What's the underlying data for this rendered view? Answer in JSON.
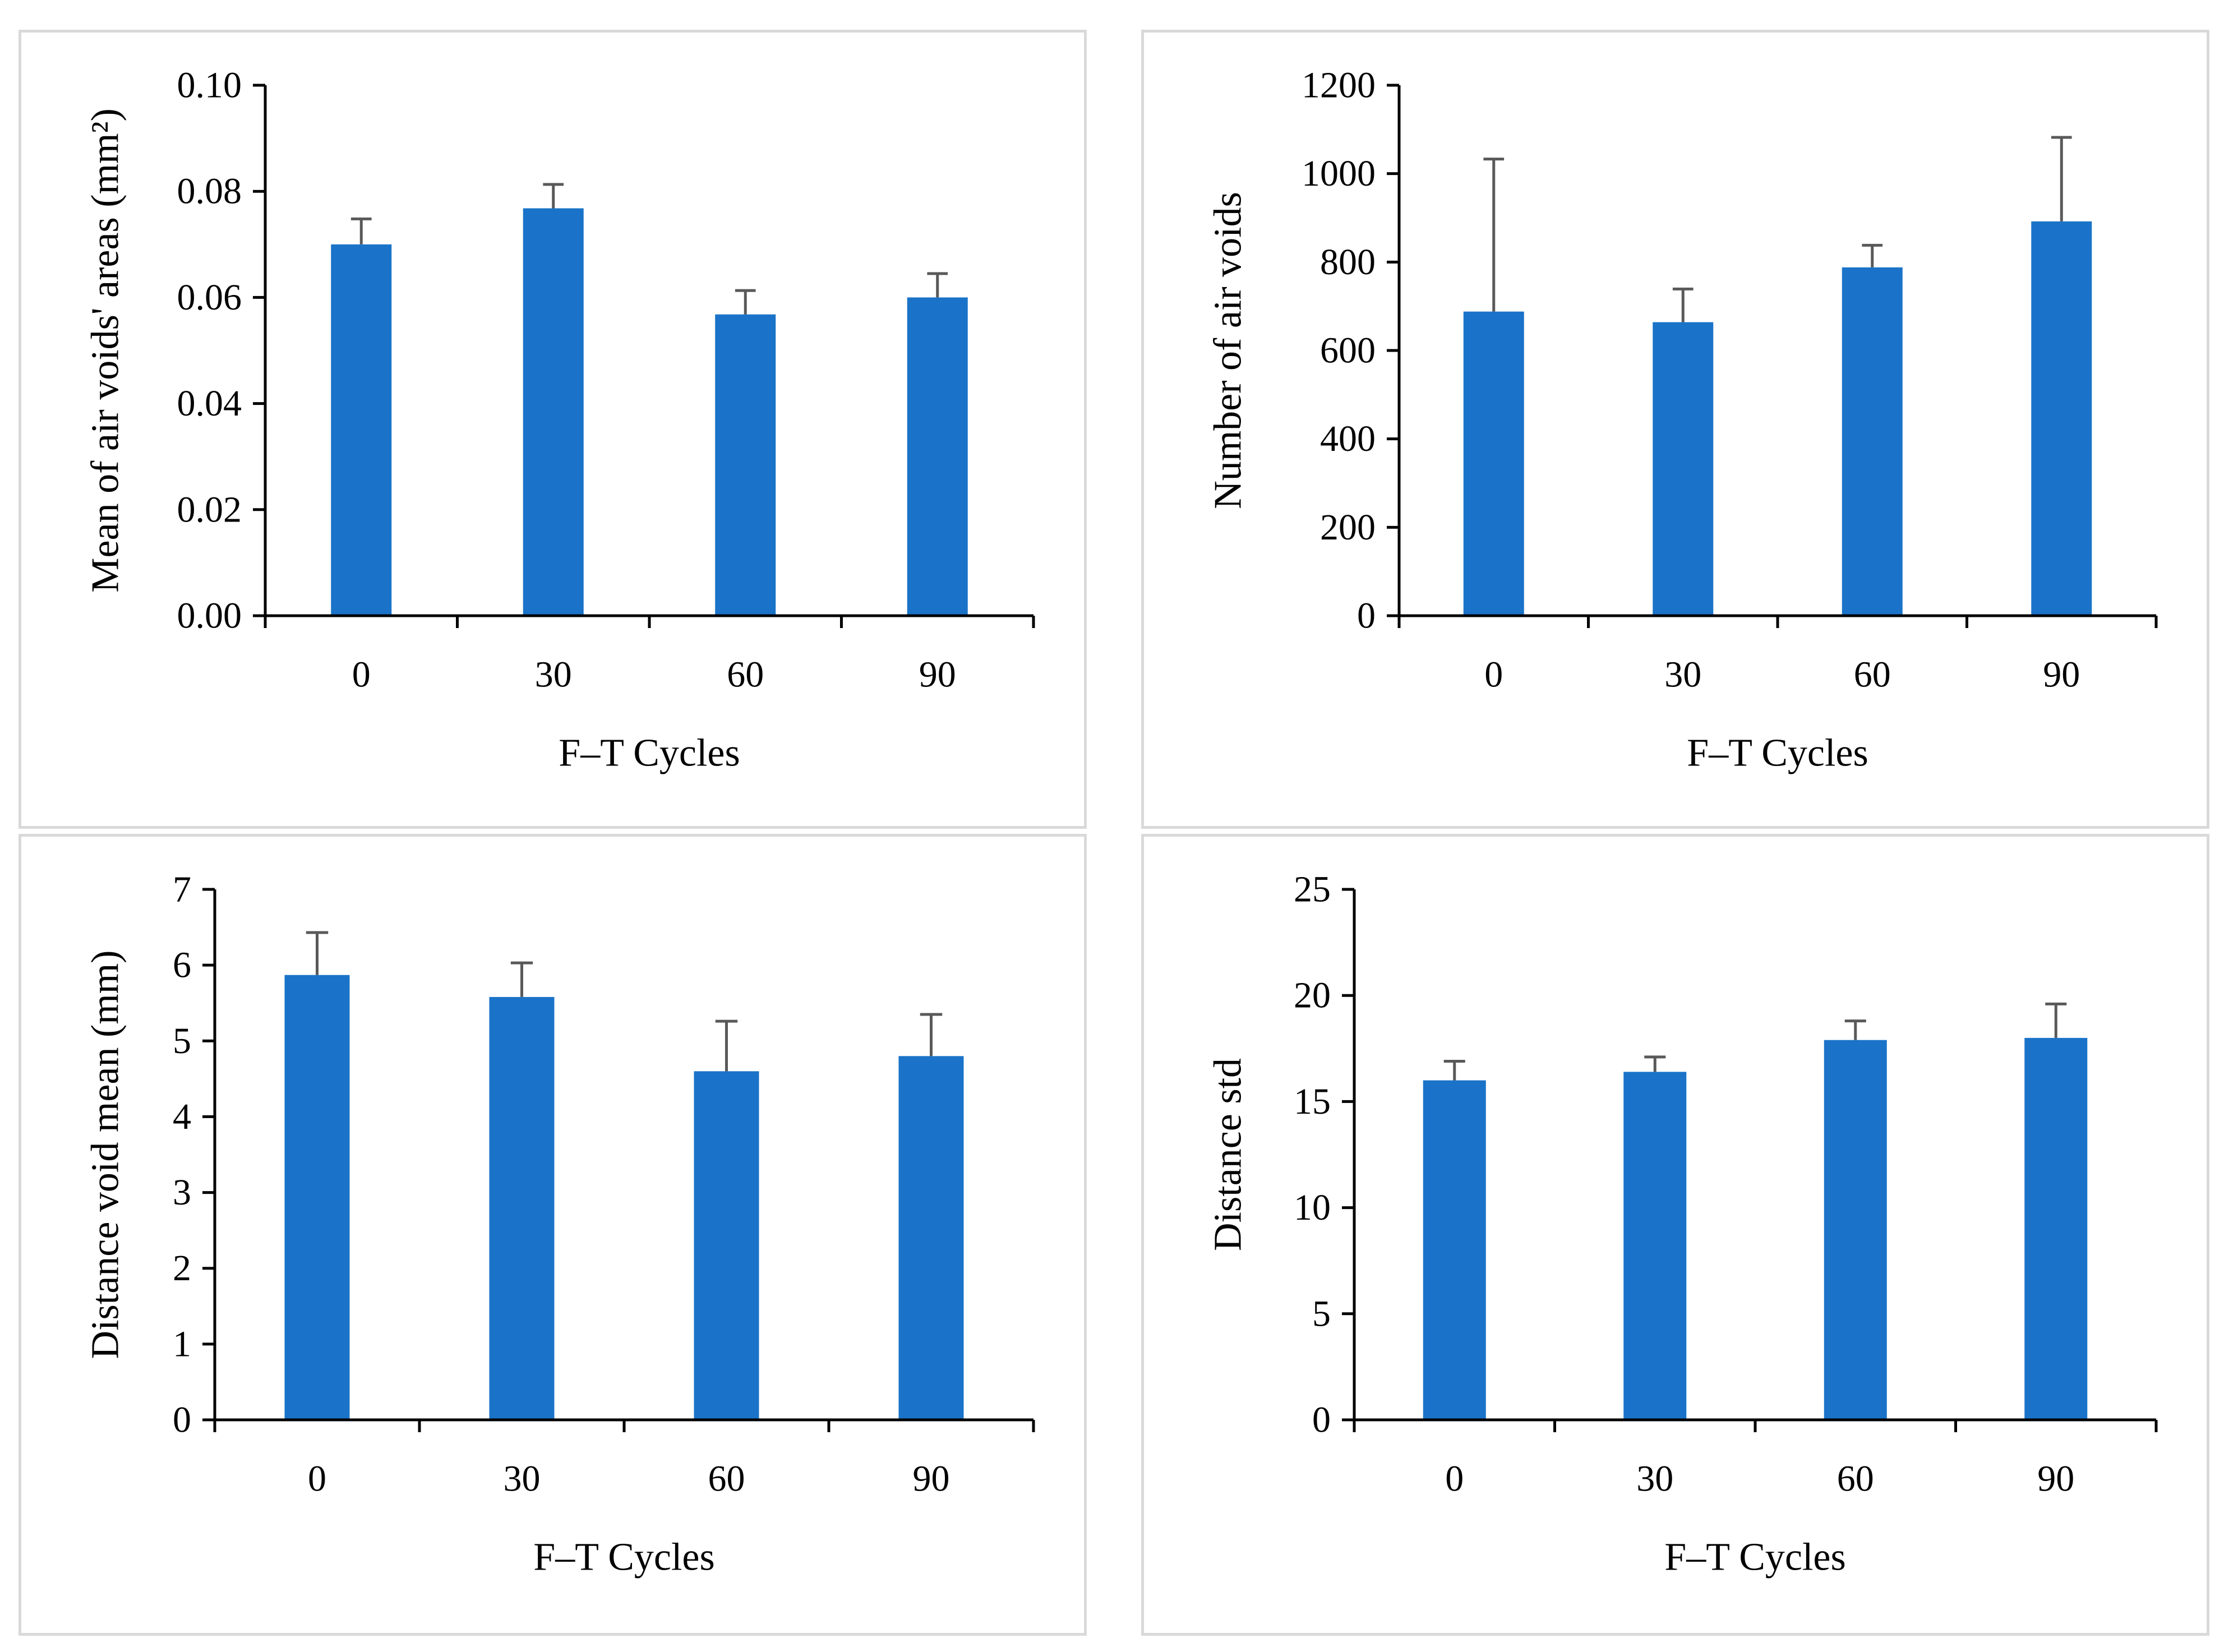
{
  "colors": {
    "bar": "#1A73C8",
    "error_bar": "#595959",
    "axis": "#000000",
    "panel_border": "#d9d9d9"
  },
  "chart_data": [
    {
      "type": "bar",
      "title": "",
      "xlabel": "F–T Cycles",
      "ylabel": "Mean of air voids' areas (mm²)",
      "categories": [
        "0",
        "30",
        "60",
        "90"
      ],
      "values": [
        0.07,
        0.0768,
        0.0568,
        0.06
      ],
      "errors": [
        0.0048,
        0.0045,
        0.0045,
        0.0045
      ],
      "ylim": [
        0,
        0.1
      ],
      "yticks": [
        0,
        0.02,
        0.04,
        0.06,
        0.08,
        0.1
      ],
      "ytick_labels": [
        "0.00",
        "0.02",
        "0.04",
        "0.06",
        "0.08",
        "0.10"
      ],
      "grid": false
    },
    {
      "type": "bar",
      "title": "",
      "xlabel": "F–T Cycles",
      "ylabel": "Number of air voids",
      "categories": [
        "0",
        "30",
        "60",
        "90"
      ],
      "values": [
        688,
        664,
        788,
        892
      ],
      "errors": [
        345,
        75,
        50,
        190
      ],
      "ylim": [
        0,
        1200
      ],
      "yticks": [
        0,
        200,
        400,
        600,
        800,
        1000,
        1200
      ],
      "ytick_labels": [
        "0",
        "200",
        "400",
        "600",
        "800",
        "1000",
        "1200"
      ],
      "grid": false
    },
    {
      "type": "bar",
      "title": "",
      "xlabel": "F–T Cycles",
      "ylabel": "Distance void mean (mm)",
      "categories": [
        "0",
        "30",
        "60",
        "90"
      ],
      "values": [
        5.87,
        5.58,
        4.6,
        4.8
      ],
      "errors": [
        0.56,
        0.45,
        0.66,
        0.55
      ],
      "ylim": [
        0,
        7
      ],
      "yticks": [
        0,
        1,
        2,
        3,
        4,
        5,
        6,
        7
      ],
      "ytick_labels": [
        "0",
        "1",
        "2",
        "3",
        "4",
        "5",
        "6",
        "7"
      ],
      "grid": false
    },
    {
      "type": "bar",
      "title": "",
      "xlabel": "F–T Cycles",
      "ylabel": "Distance std",
      "categories": [
        "0",
        "30",
        "60",
        "90"
      ],
      "values": [
        16.0,
        16.4,
        17.9,
        18.0
      ],
      "errors": [
        0.9,
        0.7,
        0.9,
        1.6
      ],
      "ylim": [
        0,
        25
      ],
      "yticks": [
        0,
        5,
        10,
        15,
        20,
        25
      ],
      "ytick_labels": [
        "0",
        "5",
        "10",
        "15",
        "20",
        "25"
      ],
      "grid": false
    }
  ]
}
